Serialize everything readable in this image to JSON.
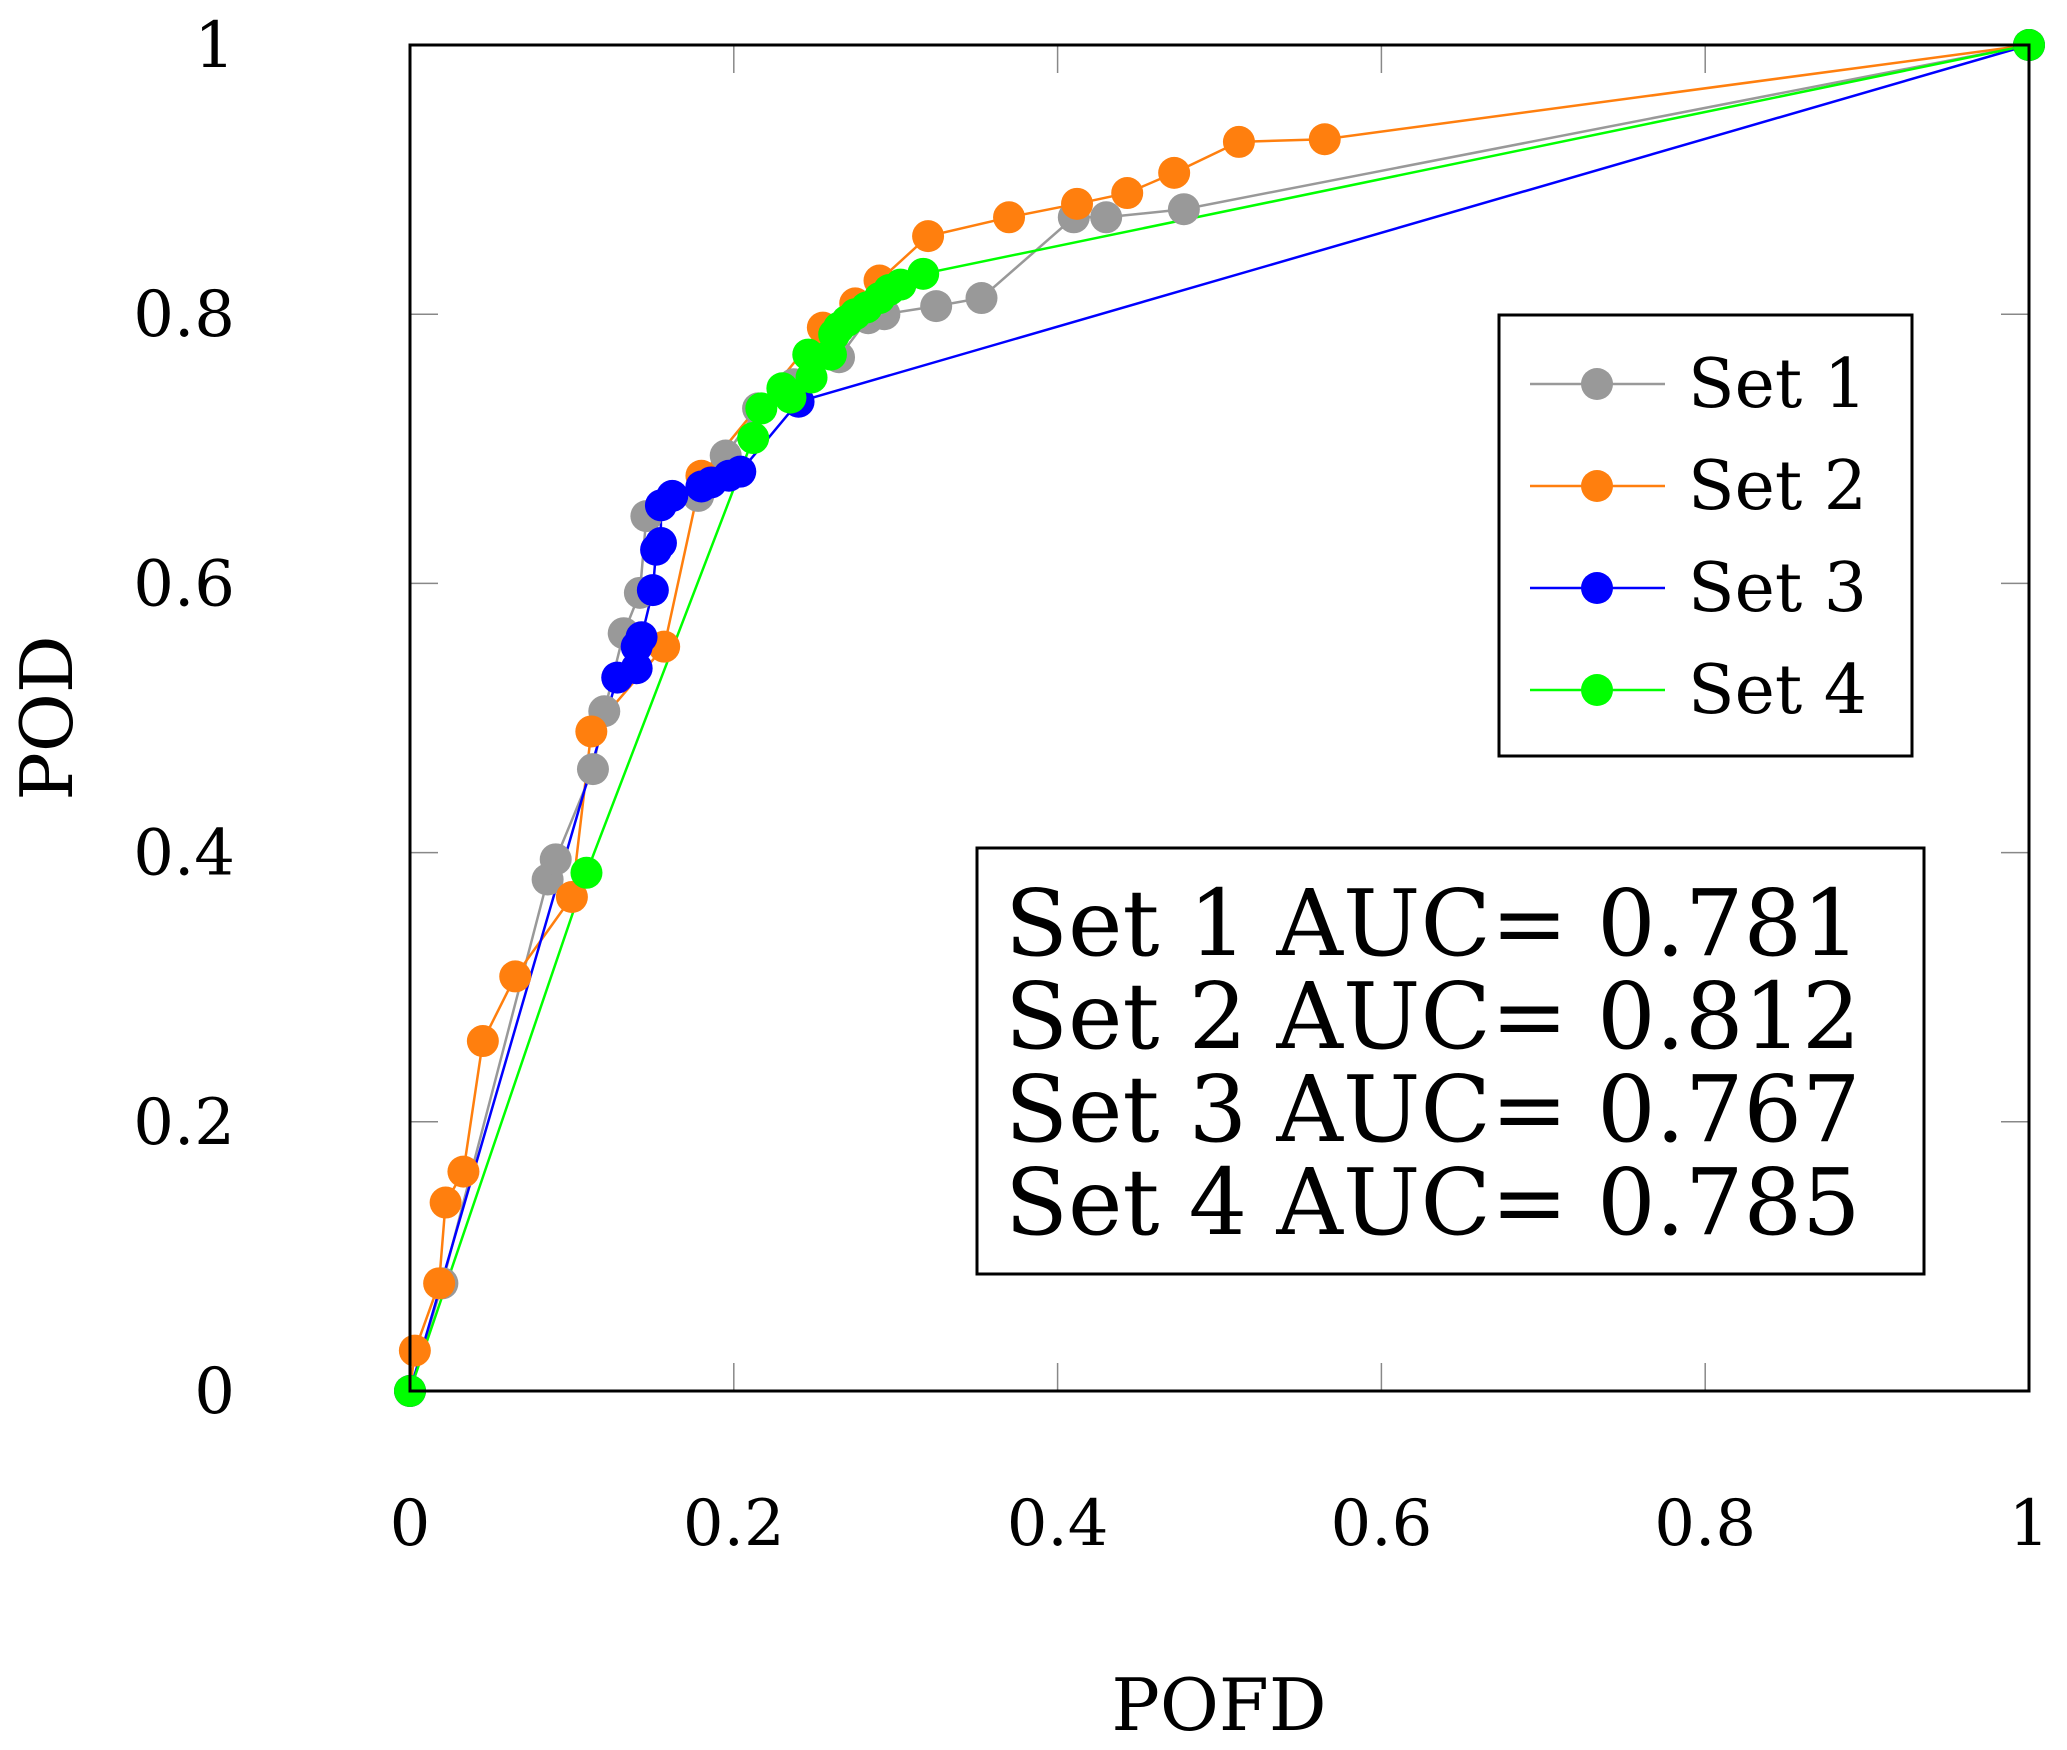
{
  "chart_data": {
    "type": "line",
    "title": "",
    "xlabel": "POFD",
    "ylabel": "POD",
    "xlim": [
      0,
      1
    ],
    "ylim": [
      0,
      1
    ],
    "x_tick_labels": [
      "0",
      "0.2",
      "0.4",
      "0.6",
      "0.8",
      "1"
    ],
    "x_ticks": [
      0,
      0.2,
      0.4,
      0.6,
      0.8,
      1
    ],
    "y_tick_labels": [
      "0",
      "0.2",
      "0.4",
      "0.6",
      "0.8",
      "1"
    ],
    "y_ticks": [
      0,
      0.2,
      0.4,
      0.6,
      0.8,
      1
    ],
    "grid": false,
    "legend_position": "upper-right",
    "series": [
      {
        "name": "Set 1",
        "color": "#999999",
        "points": [
          [
            0,
            0
          ],
          [
            0.02,
            0.08
          ],
          [
            0.085,
            0.38
          ],
          [
            0.09,
            0.395
          ],
          [
            0.113,
            0.462
          ],
          [
            0.12,
            0.505
          ],
          [
            0.132,
            0.563
          ],
          [
            0.142,
            0.593
          ],
          [
            0.146,
            0.65
          ],
          [
            0.178,
            0.665
          ],
          [
            0.195,
            0.695
          ],
          [
            0.215,
            0.73
          ],
          [
            0.237,
            0.748
          ],
          [
            0.265,
            0.768
          ],
          [
            0.283,
            0.797
          ],
          [
            0.293,
            0.8
          ],
          [
            0.325,
            0.806
          ],
          [
            0.353,
            0.812
          ],
          [
            0.41,
            0.872
          ],
          [
            0.43,
            0.872
          ],
          [
            0.478,
            0.878
          ],
          [
            1,
            1
          ]
        ]
      },
      {
        "name": "Set 2",
        "color": "#ff7f0e",
        "points": [
          [
            0,
            0
          ],
          [
            0.003,
            0.03
          ],
          [
            0.018,
            0.08
          ],
          [
            0.022,
            0.14
          ],
          [
            0.033,
            0.163
          ],
          [
            0.045,
            0.26
          ],
          [
            0.065,
            0.308
          ],
          [
            0.1,
            0.367
          ],
          [
            0.112,
            0.49
          ],
          [
            0.157,
            0.553
          ],
          [
            0.18,
            0.68
          ],
          [
            0.255,
            0.79
          ],
          [
            0.275,
            0.808
          ],
          [
            0.29,
            0.825
          ],
          [
            0.32,
            0.858
          ],
          [
            0.37,
            0.872
          ],
          [
            0.412,
            0.882
          ],
          [
            0.443,
            0.89
          ],
          [
            0.472,
            0.905
          ],
          [
            0.512,
            0.928
          ],
          [
            0.565,
            0.93
          ],
          [
            1,
            1
          ]
        ]
      },
      {
        "name": "Set 3",
        "color": "#0000ff",
        "points": [
          [
            0,
            0
          ],
          [
            0.128,
            0.53
          ],
          [
            0.14,
            0.537
          ],
          [
            0.14,
            0.553
          ],
          [
            0.143,
            0.56
          ],
          [
            0.15,
            0.595
          ],
          [
            0.152,
            0.625
          ],
          [
            0.155,
            0.63
          ],
          [
            0.155,
            0.658
          ],
          [
            0.162,
            0.665
          ],
          [
            0.18,
            0.672
          ],
          [
            0.186,
            0.675
          ],
          [
            0.197,
            0.68
          ],
          [
            0.204,
            0.683
          ],
          [
            0.24,
            0.735
          ],
          [
            1,
            1
          ]
        ]
      },
      {
        "name": "Set 4",
        "color": "#00ff00",
        "points": [
          [
            0,
            0
          ],
          [
            0.109,
            0.385
          ],
          [
            0.212,
            0.708
          ],
          [
            0.217,
            0.73
          ],
          [
            0.23,
            0.745
          ],
          [
            0.235,
            0.738
          ],
          [
            0.248,
            0.753
          ],
          [
            0.246,
            0.77
          ],
          [
            0.26,
            0.77
          ],
          [
            0.262,
            0.785
          ],
          [
            0.265,
            0.79
          ],
          [
            0.27,
            0.795
          ],
          [
            0.275,
            0.8
          ],
          [
            0.282,
            0.805
          ],
          [
            0.29,
            0.812
          ],
          [
            0.296,
            0.818
          ],
          [
            0.303,
            0.822
          ],
          [
            0.317,
            0.83
          ],
          [
            1,
            1
          ]
        ]
      }
    ],
    "annotations": [
      "Set 1 AUC= 0.781",
      "Set 2 AUC= 0.812",
      "Set 3 AUC= 0.767",
      "Set 4 AUC= 0.785"
    ]
  }
}
